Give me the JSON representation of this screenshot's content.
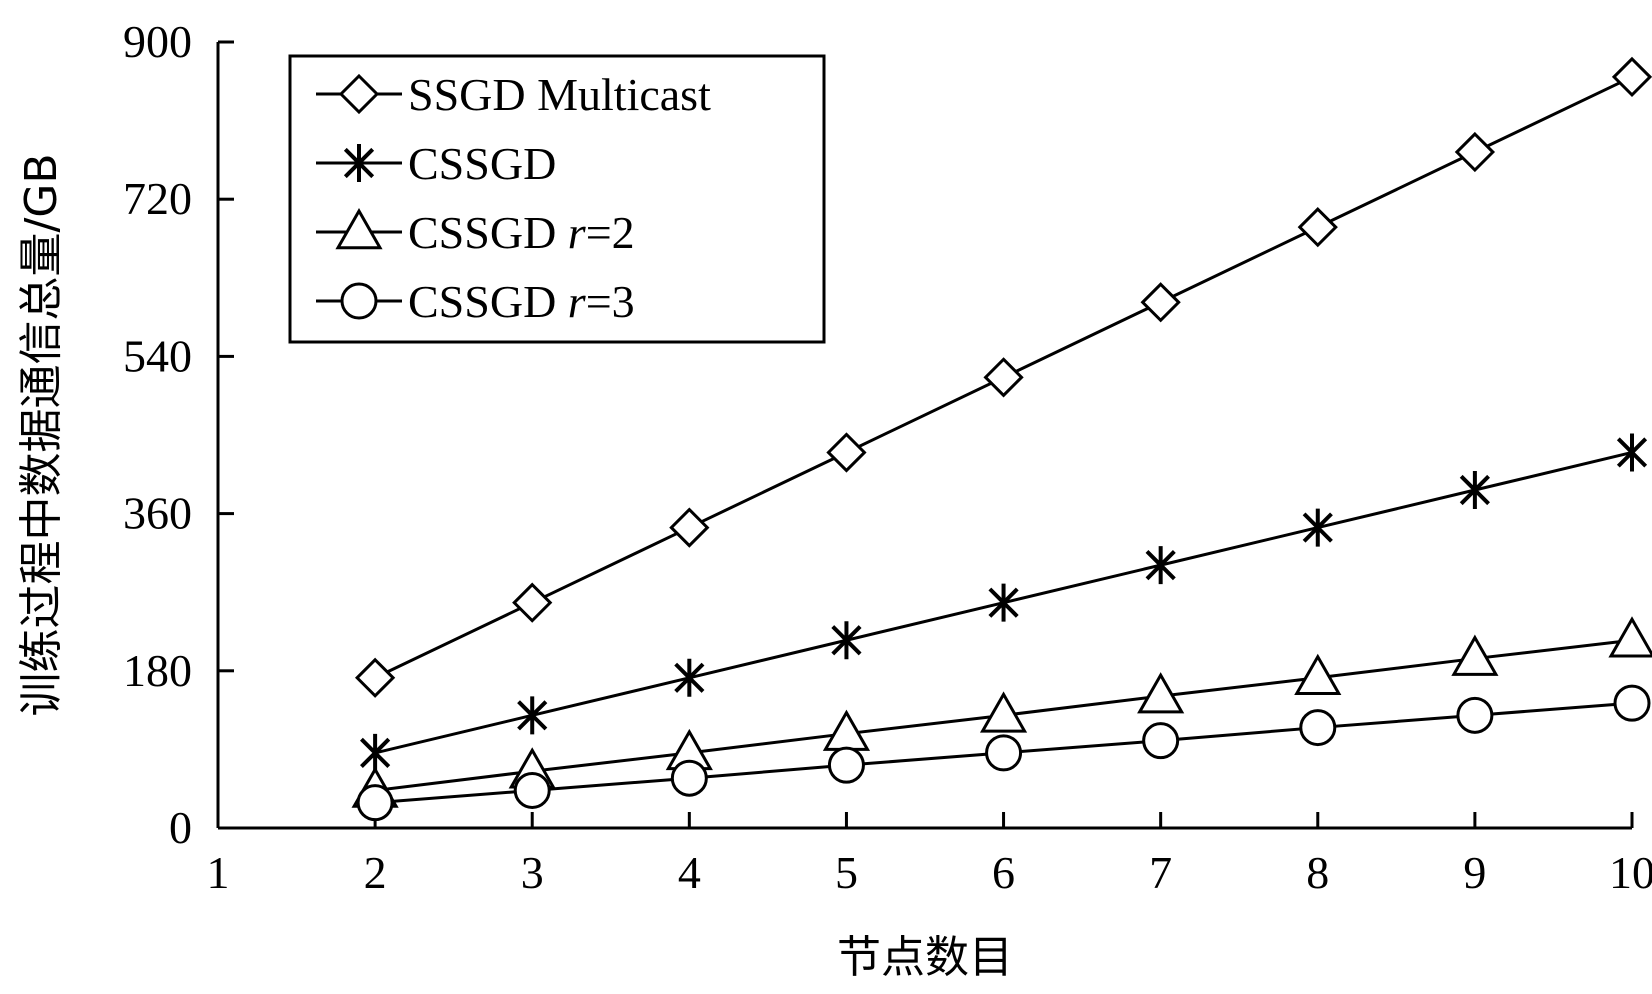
{
  "chart_data": {
    "type": "line",
    "xlabel": "节点数目",
    "ylabel": "训练过程中数据通信总量/GB",
    "xlim": [
      1,
      10
    ],
    "ylim": [
      0,
      900
    ],
    "xticks": [
      1,
      2,
      3,
      4,
      5,
      6,
      7,
      8,
      9,
      10
    ],
    "yticks": [
      0,
      180,
      360,
      540,
      720,
      900
    ],
    "x": [
      2,
      3,
      4,
      5,
      6,
      7,
      8,
      9,
      10
    ],
    "grid": false,
    "legend_position": "top-left",
    "series": [
      {
        "name": "SSGD Multicast",
        "name_parts": [
          "SSGD Multicast",
          "",
          ""
        ],
        "marker": "diamond",
        "values": [
          172,
          258,
          344,
          430,
          516,
          602,
          688,
          774,
          860
        ]
      },
      {
        "name": "CSSGD",
        "name_parts": [
          "CSSGD",
          "",
          ""
        ],
        "marker": "asterisk",
        "values": [
          86,
          129,
          172,
          215,
          258,
          301,
          344,
          387,
          430
        ]
      },
      {
        "name": "CSSGD r=2",
        "name_parts": [
          "CSSGD ",
          "r",
          "=2"
        ],
        "marker": "triangle",
        "values": [
          43,
          65,
          86,
          108,
          129,
          151,
          172,
          194,
          215
        ]
      },
      {
        "name": "CSSGD r=3",
        "name_parts": [
          "CSSGD ",
          "r",
          "=3"
        ],
        "marker": "circle",
        "values": [
          29,
          43,
          57,
          72,
          86,
          100,
          115,
          129,
          143
        ]
      }
    ]
  }
}
